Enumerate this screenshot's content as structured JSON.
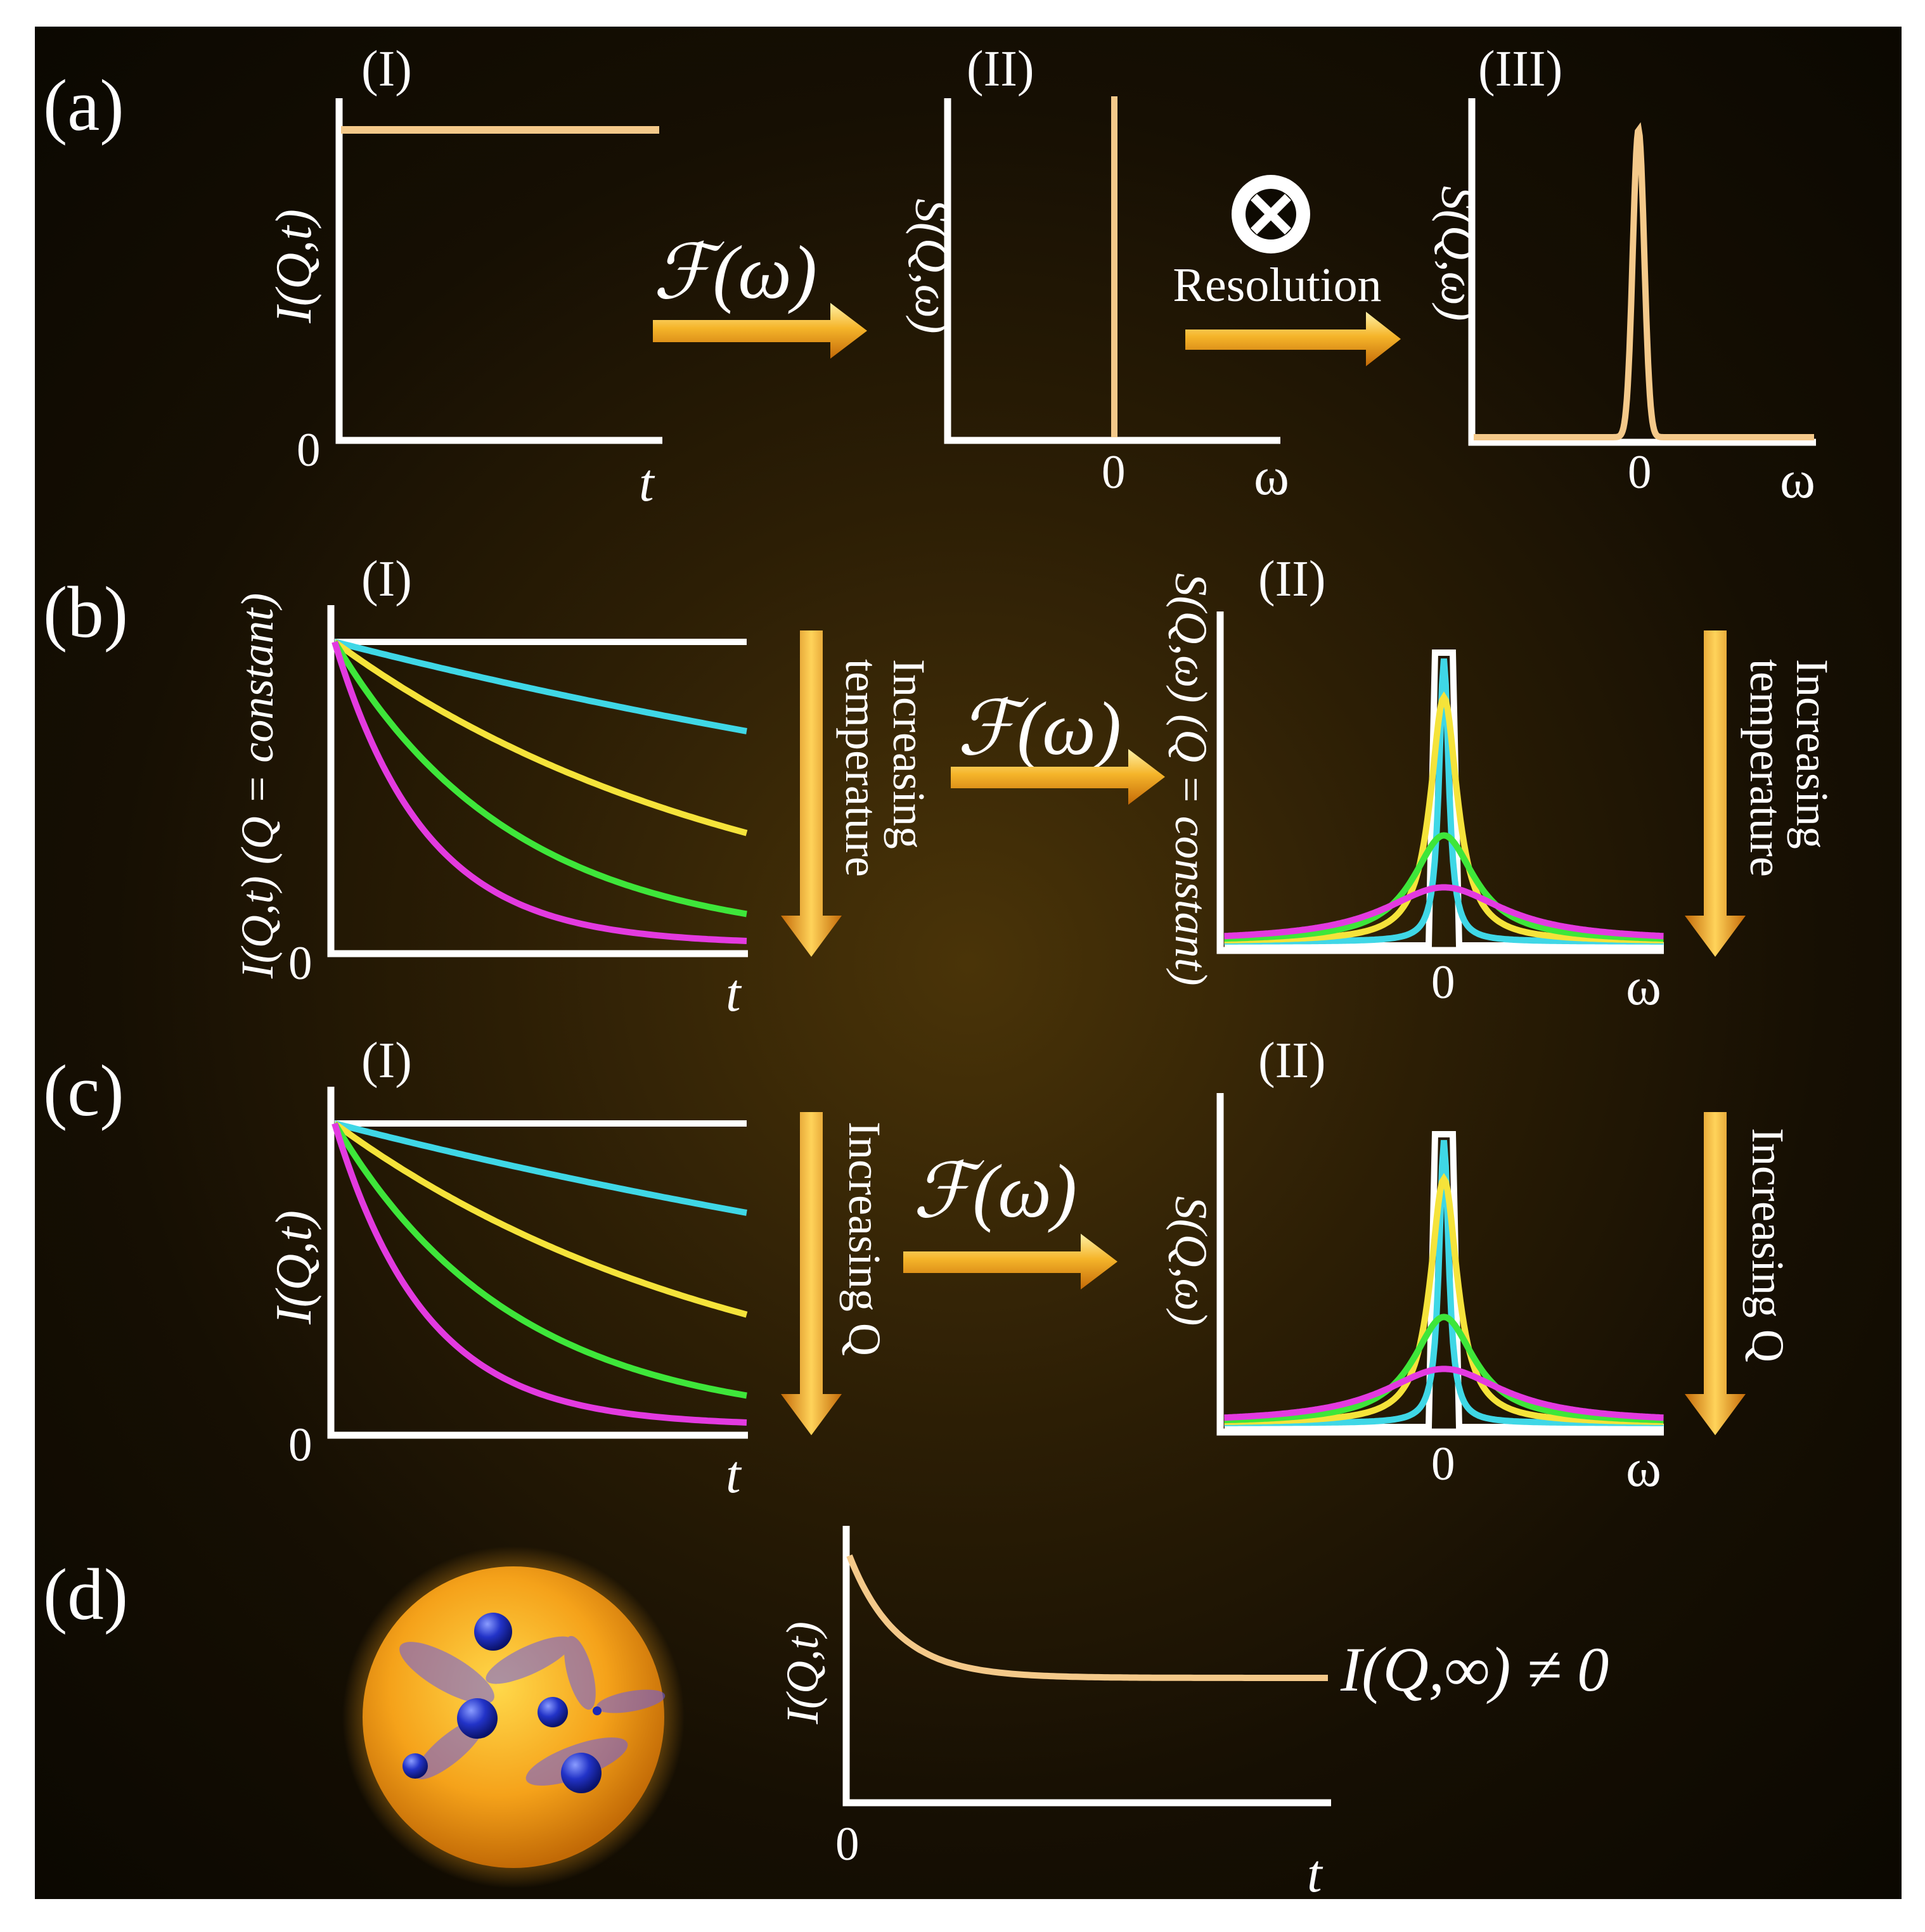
{
  "panels": {
    "a": {
      "label": "(a)",
      "sub": [
        "(I)",
        "(II)",
        "(III)"
      ],
      "ylabel_time": "I(Q,t)",
      "ylabel_freq": "S(Q,ω)",
      "xlabel_time": "t",
      "xlabel_freq": "ω",
      "zero": "0",
      "transform": "ℱ(ω)",
      "resolution_symbol": "⊗",
      "resolution_label": "Resolution"
    },
    "b": {
      "label": "(b)",
      "sub": [
        "(I)",
        "(II)"
      ],
      "ylabel_time": "I(Q,t) (Q = constant)",
      "ylabel_freq": "S(Q,ω) (Q = constant)",
      "xlabel_time": "t",
      "xlabel_freq": "ω",
      "zero": "0",
      "transform": "ℱ(ω)",
      "trend": "Increasing temperature",
      "trend_lines": [
        "Increasing",
        "temperature"
      ]
    },
    "c": {
      "label": "(c)",
      "sub": [
        "(I)",
        "(II)"
      ],
      "ylabel_time": "I(Q,t)",
      "ylabel_freq": "S(Q,ω)",
      "xlabel_time": "t",
      "xlabel_freq": "ω",
      "zero": "0",
      "transform": "ℱ(ω)",
      "trend": "Increasing Q"
    },
    "d": {
      "label": "(d)",
      "ylabel_time": "I(Q,t)",
      "xlabel_time": "t",
      "zero": "0",
      "plateau_label": "I(Q,∞) ≠ 0"
    }
  },
  "curve_colors": {
    "white": "#ffffff",
    "cyan": "#3fd7e6",
    "yellow": "#f5e33a",
    "green": "#3ee63a",
    "magenta": "#e33ae0",
    "tan": "#f4c98a",
    "arrow": "#f5a623"
  },
  "decay_rates": [
    0,
    0.35,
    1.0,
    2.3,
    4.5
  ],
  "sphere_colors": {
    "shell": "#f5a623",
    "particles": "#1a2ab8"
  }
}
